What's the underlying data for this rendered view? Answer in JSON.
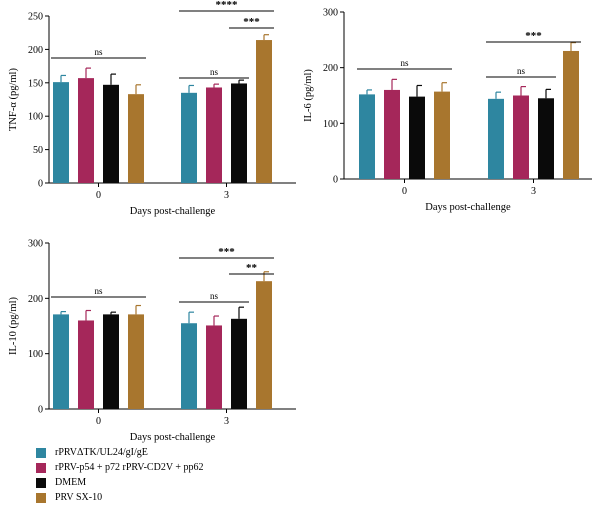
{
  "series": [
    {
      "name": "rPRVΔTK/UL24/gI/gE",
      "color": "#2e86a0"
    },
    {
      "name": "rPRV-p54 + p72 rPRV-CD2V + pp62",
      "color": "#a5275a"
    },
    {
      "name": "DMEM",
      "color": "#0a0a0a"
    },
    {
      "name": "PRV SX-10",
      "color": "#a8762e"
    }
  ],
  "chart_data": [
    {
      "type": "bar",
      "ylabel": "TNF-α (pg/ml)",
      "xlabel": "Days post-challenge",
      "categories": [
        "0",
        "3"
      ],
      "ylim": [
        0,
        250
      ],
      "yticks": [
        "0",
        "50",
        "100",
        "150",
        "200",
        "250"
      ],
      "series": [
        {
          "values": [
            151,
            135
          ],
          "errors": [
            10,
            11
          ]
        },
        {
          "values": [
            157,
            143
          ],
          "errors": [
            15,
            5
          ]
        },
        {
          "values": [
            147,
            149
          ],
          "errors": [
            16,
            5
          ]
        },
        {
          "values": [
            133,
            214
          ],
          "errors": [
            14,
            8
          ]
        }
      ],
      "annotations": [
        {
          "text": "ns",
          "group": 0,
          "from": 0,
          "to": 3
        },
        {
          "text": "ns",
          "group": 1,
          "from": 0,
          "to": 2
        },
        {
          "text": "***",
          "group": 1,
          "from": 2,
          "to": 3
        },
        {
          "text": "****",
          "group": 1,
          "from": 0,
          "to": 3
        }
      ]
    },
    {
      "type": "bar",
      "ylabel": "IL-6 (pg/ml)",
      "xlabel": "Days post-challenge",
      "categories": [
        "0",
        "3"
      ],
      "ylim": [
        0,
        300
      ],
      "yticks": [
        "0",
        "100",
        "200",
        "300"
      ],
      "series": [
        {
          "values": [
            152,
            144
          ],
          "errors": [
            8,
            12
          ]
        },
        {
          "values": [
            160,
            150
          ],
          "errors": [
            19,
            16
          ]
        },
        {
          "values": [
            148,
            145
          ],
          "errors": [
            20,
            16
          ]
        },
        {
          "values": [
            157,
            230
          ],
          "errors": [
            16,
            15
          ]
        }
      ],
      "annotations": [
        {
          "text": "ns",
          "group": 0,
          "from": 0,
          "to": 3
        },
        {
          "text": "ns",
          "group": 1,
          "from": 0,
          "to": 2
        },
        {
          "text": "***",
          "group": 1,
          "from": 0,
          "to": 3
        }
      ]
    },
    {
      "type": "bar",
      "ylabel": "IL-10 (pg/ml)",
      "xlabel": "Days post-challenge",
      "categories": [
        "0",
        "3"
      ],
      "ylim": [
        0,
        300
      ],
      "yticks": [
        "0",
        "100",
        "200",
        "300"
      ],
      "series": [
        {
          "values": [
            171,
            155
          ],
          "errors": [
            5,
            20
          ]
        },
        {
          "values": [
            160,
            151
          ],
          "errors": [
            18,
            17
          ]
        },
        {
          "values": [
            171,
            163
          ],
          "errors": [
            4,
            21
          ]
        },
        {
          "values": [
            171,
            231
          ],
          "errors": [
            16,
            17
          ]
        }
      ],
      "annotations": [
        {
          "text": "ns",
          "group": 0,
          "from": 0,
          "to": 3
        },
        {
          "text": "ns",
          "group": 1,
          "from": 0,
          "to": 2
        },
        {
          "text": "**",
          "group": 1,
          "from": 2,
          "to": 3
        },
        {
          "text": "***",
          "group": 1,
          "from": 0,
          "to": 3
        }
      ]
    }
  ]
}
